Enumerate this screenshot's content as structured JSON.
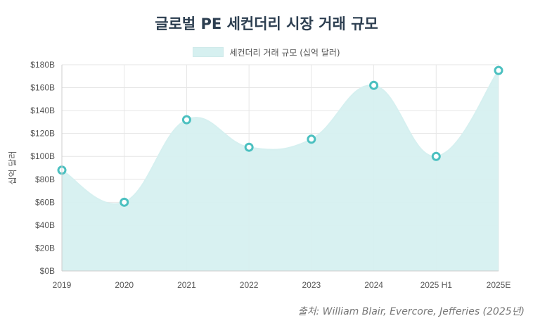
{
  "chart_data": {
    "type": "area",
    "title": "글로벌 PE 세컨더리 시장 거래 규모",
    "series": [
      {
        "name": "세컨더리 거래 규모 (십억 달러)",
        "values": [
          88,
          60,
          132,
          108,
          115,
          162,
          100,
          175
        ]
      }
    ],
    "categories": [
      "2019",
      "2020",
      "2021",
      "2022",
      "2023",
      "2024",
      "2025 H1",
      "2025E"
    ],
    "ylabel": "십억 달러",
    "ylim": [
      0,
      180
    ],
    "yticks": [
      "$0B",
      "$20B",
      "$40B",
      "$60B",
      "$80B",
      "$100B",
      "$120B",
      "$140B",
      "$160B",
      "$180B"
    ],
    "grid": true,
    "legend": "top",
    "colors": {
      "fill": "#d6f0f0",
      "point": "#4bc0c0",
      "grid": "#e6e6e6"
    }
  },
  "source": "출처: William Blair, Evercore, Jefferies (2025년)"
}
